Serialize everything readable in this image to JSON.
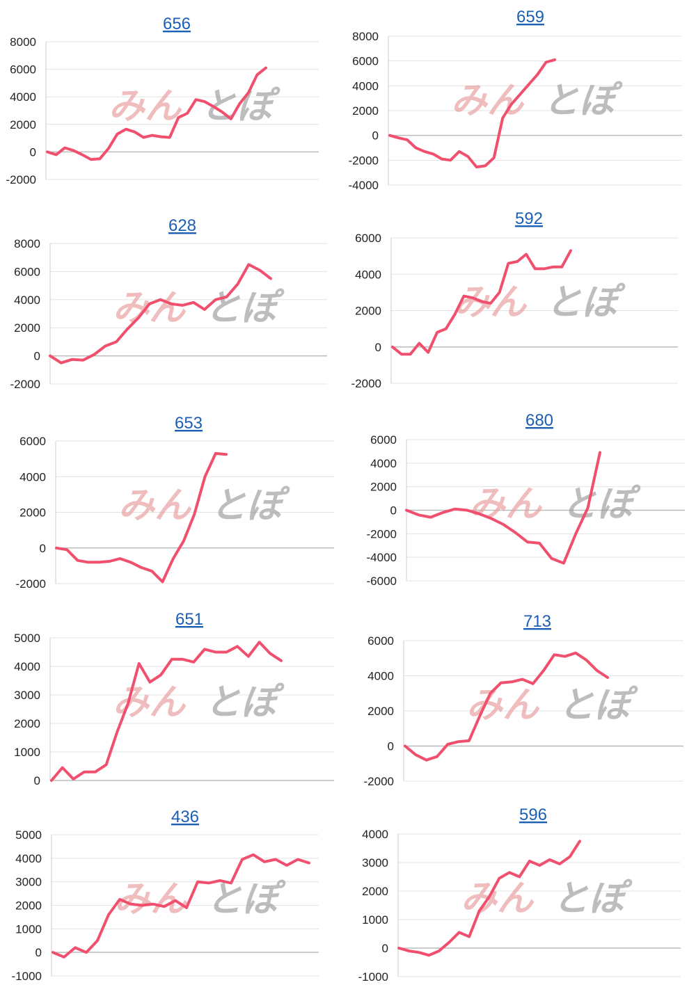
{
  "watermark": {
    "text_a": "みん",
    "text_b": "とぽ",
    "color_a": "#e89a9a",
    "color_b": "#9a9a9a"
  },
  "line_color": "#f0506e",
  "title_color": "#1a5fb4",
  "chart_data": [
    {
      "type": "line",
      "title": "656",
      "ylim": [
        -2000,
        8000
      ],
      "yticks": [
        -2000,
        0,
        2000,
        4000,
        6000,
        8000
      ],
      "series": [
        {
          "values": [
            0,
            -200,
            300,
            100,
            -200,
            -550,
            -500,
            250,
            1300,
            1650,
            1450,
            1050,
            1200,
            1100,
            1050,
            2500,
            2800,
            3800,
            3650,
            3300,
            2900,
            2400,
            3500,
            4300,
            5600,
            6100
          ]
        }
      ]
    },
    {
      "type": "line",
      "title": "659",
      "ylim": [
        -4000,
        8000
      ],
      "yticks": [
        -4000,
        -2000,
        0,
        2000,
        4000,
        6000,
        8000
      ],
      "series": [
        {
          "values": [
            0,
            -200,
            -350,
            -1000,
            -1300,
            -1500,
            -1900,
            -2000,
            -1300,
            -1700,
            -2550,
            -2450,
            -1800,
            1400,
            2500,
            3300,
            4100,
            4900,
            5900,
            6100
          ]
        }
      ]
    },
    {
      "type": "line",
      "title": "628",
      "ylim": [
        -2000,
        8000
      ],
      "yticks": [
        -2000,
        0,
        2000,
        4000,
        6000,
        8000
      ],
      "series": [
        {
          "values": [
            0,
            -500,
            -250,
            -300,
            100,
            700,
            1000,
            1900,
            2700,
            3700,
            4000,
            3700,
            3600,
            3800,
            3300,
            4000,
            4200,
            5100,
            6500,
            6100,
            5500
          ]
        }
      ]
    },
    {
      "type": "line",
      "title": "592",
      "ylim": [
        -2000,
        6000
      ],
      "yticks": [
        -2000,
        0,
        2000,
        4000,
        6000
      ],
      "series": [
        {
          "values": [
            0,
            -400,
            -400,
            200,
            -300,
            800,
            1000,
            1800,
            2800,
            2700,
            2500,
            2400,
            3000,
            4600,
            4700,
            5100,
            4300,
            4300,
            4400,
            4400,
            5300
          ]
        }
      ]
    },
    {
      "type": "line",
      "title": "653",
      "ylim": [
        -2000,
        6000
      ],
      "yticks": [
        -2000,
        0,
        2000,
        4000,
        6000
      ],
      "series": [
        {
          "values": [
            0,
            -100,
            -700,
            -800,
            -800,
            -750,
            -600,
            -800,
            -1100,
            -1300,
            -1900,
            -600,
            400,
            1900,
            4000,
            5300,
            5250
          ]
        }
      ]
    },
    {
      "type": "line",
      "title": "680",
      "ylim": [
        -6000,
        6000
      ],
      "yticks": [
        -6000,
        -4000,
        -2000,
        0,
        2000,
        4000,
        6000
      ],
      "series": [
        {
          "values": [
            0,
            -400,
            -600,
            -200,
            100,
            0,
            -300,
            -700,
            -1200,
            -1900,
            -2700,
            -2800,
            -4100,
            -4500,
            -2000,
            200,
            4900
          ]
        }
      ]
    },
    {
      "type": "line",
      "title": "651",
      "ylim": [
        0,
        5000
      ],
      "yticks": [
        0,
        1000,
        2000,
        3000,
        4000,
        5000
      ],
      "series": [
        {
          "values": [
            0,
            450,
            50,
            300,
            300,
            550,
            1700,
            2700,
            4100,
            3450,
            3700,
            4250,
            4250,
            4150,
            4600,
            4500,
            4500,
            4700,
            4350,
            4850,
            4450,
            4200
          ]
        }
      ]
    },
    {
      "type": "line",
      "title": "713",
      "ylim": [
        -2000,
        6000
      ],
      "yticks": [
        -2000,
        0,
        2000,
        4000,
        6000
      ],
      "series": [
        {
          "values": [
            0,
            -500,
            -800,
            -600,
            100,
            250,
            300,
            1700,
            3000,
            3600,
            3650,
            3800,
            3550,
            4300,
            5200,
            5100,
            5300,
            4900,
            4300,
            3900
          ]
        }
      ]
    },
    {
      "type": "line",
      "title": "436",
      "ylim": [
        -1000,
        5000
      ],
      "yticks": [
        -1000,
        0,
        1000,
        2000,
        3000,
        4000,
        5000
      ],
      "series": [
        {
          "values": [
            0,
            -200,
            200,
            0,
            500,
            1600,
            2250,
            2050,
            2000,
            2050,
            1950,
            2200,
            1900,
            3000,
            2950,
            3050,
            2950,
            3950,
            4150,
            3850,
            3950,
            3700,
            3950,
            3800
          ]
        }
      ]
    },
    {
      "type": "line",
      "title": "596",
      "ylim": [
        -1000,
        4000
      ],
      "yticks": [
        -1000,
        0,
        1000,
        2000,
        3000,
        4000
      ],
      "series": [
        {
          "values": [
            0,
            -100,
            -150,
            -250,
            -100,
            200,
            550,
            400,
            1300,
            1800,
            2450,
            2650,
            2500,
            3050,
            2900,
            3100,
            2950,
            3200,
            3750
          ]
        }
      ]
    }
  ]
}
